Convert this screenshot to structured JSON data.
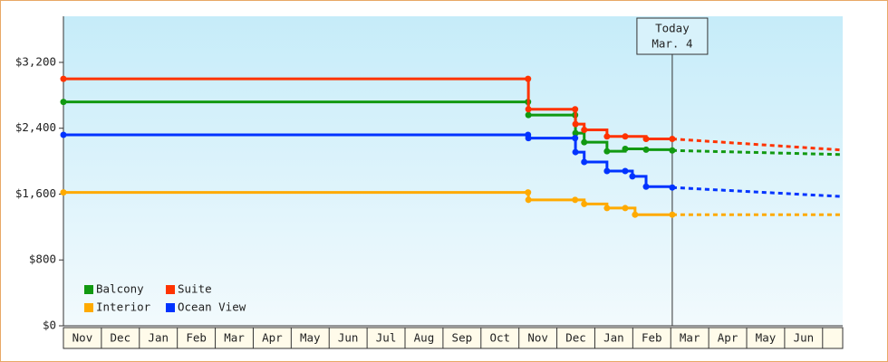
{
  "chart_data": {
    "type": "step-line",
    "categories": [
      "Nov",
      "Dec",
      "Jan",
      "Feb",
      "Mar",
      "Apr",
      "May",
      "Jun",
      "Jul",
      "Aug",
      "Sep",
      "Oct",
      "Nov",
      "Dec",
      "Jan",
      "Feb",
      "Mar",
      "Apr",
      "May",
      "Jun"
    ],
    "xlim": [
      0,
      20.53
    ],
    "ylim": [
      0,
      3760
    ],
    "yticks": [
      {
        "value": 0,
        "label": "$0"
      },
      {
        "value": 800,
        "label": "$800"
      },
      {
        "value": 1600,
        "label": "$1,600"
      },
      {
        "value": 2400,
        "label": "$2,400"
      },
      {
        "value": 3200,
        "label": "$3,200"
      }
    ],
    "annotation": {
      "x": 16.04,
      "lines": [
        "Today",
        "Mar. 4"
      ]
    },
    "legend": "bottom-left",
    "series": [
      {
        "name": "Balcony",
        "color": "#119911",
        "x": [
          0,
          12.24,
          12.25,
          13.48,
          13.49,
          13.72,
          14.32,
          14.8,
          15.35,
          16.04
        ],
        "values": [
          2720,
          2720,
          2560,
          2560,
          2340,
          2230,
          2120,
          2150,
          2140,
          2130
        ],
        "forecast_x": 20.53,
        "forecast_value": 2080
      },
      {
        "name": "Suite",
        "color": "#ff3300",
        "x": [
          0,
          12.24,
          12.25,
          13.48,
          13.49,
          13.72,
          14.32,
          14.8,
          15.35,
          16.04
        ],
        "values": [
          3000,
          3000,
          2630,
          2630,
          2450,
          2380,
          2300,
          2300,
          2270,
          2270
        ],
        "forecast_x": 20.53,
        "forecast_value": 2135
      },
      {
        "name": "Interior",
        "color": "#ffaa00",
        "x": [
          0,
          12.24,
          12.25,
          13.48,
          13.72,
          14.32,
          14.8,
          15.06,
          16.04
        ],
        "values": [
          1620,
          1620,
          1530,
          1530,
          1480,
          1430,
          1430,
          1350,
          1350
        ],
        "forecast_x": 20.53,
        "forecast_value": 1350
      },
      {
        "name": "Ocean View",
        "color": "#0033ff",
        "x": [
          0,
          12.24,
          12.25,
          13.48,
          13.49,
          13.72,
          14.32,
          14.8,
          14.99,
          15.35,
          16.04
        ],
        "values": [
          2320,
          2320,
          2280,
          2280,
          2110,
          1990,
          1880,
          1880,
          1815,
          1690,
          1680
        ],
        "forecast_x": 20.53,
        "forecast_value": 1570
      }
    ]
  }
}
